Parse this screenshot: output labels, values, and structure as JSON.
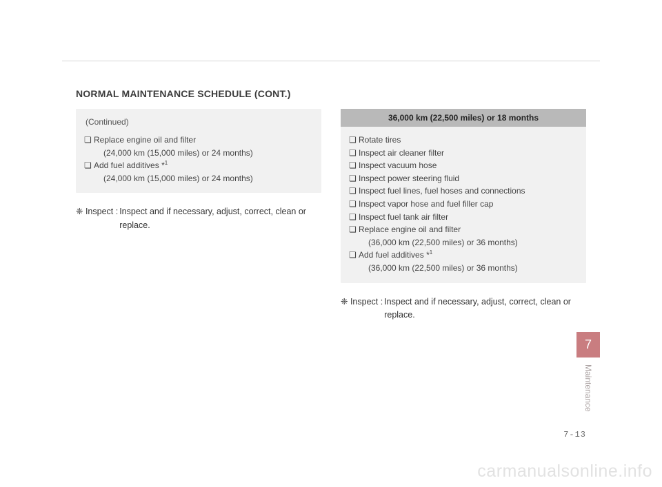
{
  "heading": "NORMAL MAINTENANCE SCHEDULE (CONT.)",
  "left": {
    "continued": "(Continued)",
    "items": [
      {
        "text": "Replace engine oil and filter",
        "sub": "(24,000 km (15,000 miles) or 24 months)"
      },
      {
        "text": "Add fuel additives *",
        "sup": "1",
        "sub": "(24,000 km (15,000 miles) or 24 months)"
      }
    ],
    "note_lead": "❈ Inspect : ",
    "note_body": "Inspect and if necessary, adjust, correct, clean or replace."
  },
  "right": {
    "title": "36,000 km (22,500 miles) or 18 months",
    "items": [
      {
        "text": "Rotate tires"
      },
      {
        "text": "Inspect air cleaner filter"
      },
      {
        "text": "Inspect vacuum hose"
      },
      {
        "text": "Inspect power steering fluid"
      },
      {
        "text": "Inspect fuel lines, fuel hoses and connections"
      },
      {
        "text": "Inspect vapor hose and fuel filler cap"
      },
      {
        "text": "Inspect fuel tank air filter"
      },
      {
        "text": "Replace engine oil and filter",
        "sub": "(36,000 km (22,500 miles) or 36 months)"
      },
      {
        "text": "Add fuel additives *",
        "sup": "1",
        "sub": "(36,000 km (22,500 miles) or 36 months)"
      }
    ],
    "note_lead": "❈ Inspect : ",
    "note_body": "Inspect and if necessary, adjust, correct, clean or replace."
  },
  "tab": {
    "num": "7",
    "label": "Maintenance"
  },
  "pagenum": "7-13",
  "watermark": "carmanualsonline.info",
  "bullet": "❏"
}
